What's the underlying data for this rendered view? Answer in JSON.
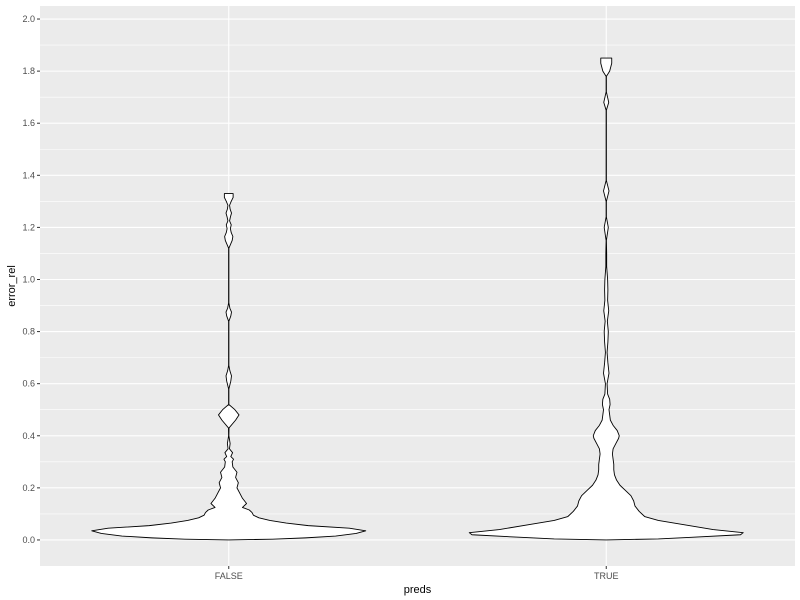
{
  "chart_data": {
    "type": "violin",
    "title": "",
    "xlabel": "preds",
    "ylabel": "error_rel",
    "ylim": [
      -0.1,
      2.05
    ],
    "yticks": [
      0.0,
      0.2,
      0.4,
      0.6,
      0.8,
      1.0,
      1.2,
      1.4,
      1.6,
      1.8,
      2.0
    ],
    "ytick_labels": [
      "0.0",
      "0.2",
      "0.4",
      "0.6",
      "0.8",
      "1.0",
      "1.2",
      "1.4",
      "1.6",
      "1.8",
      "2.0"
    ],
    "categories": [
      "FALSE",
      "TRUE"
    ],
    "grid": true,
    "colors": {
      "panel": "#ebebeb",
      "grid_major": "#ffffff",
      "violin_fill": "#ffffff",
      "violin_stroke": "#000000"
    },
    "series": [
      {
        "name": "FALSE",
        "y_min": 0.0,
        "y_max": 1.33,
        "density_profile": [
          [
            0.0,
            0.0
          ],
          [
            0.003,
            0.32
          ],
          [
            0.008,
            0.56
          ],
          [
            0.015,
            0.78
          ],
          [
            0.025,
            0.93
          ],
          [
            0.035,
            1.0
          ],
          [
            0.045,
            0.88
          ],
          [
            0.055,
            0.58
          ],
          [
            0.065,
            0.42
          ],
          [
            0.075,
            0.3
          ],
          [
            0.085,
            0.22
          ],
          [
            0.095,
            0.18
          ],
          [
            0.105,
            0.17
          ],
          [
            0.115,
            0.15
          ],
          [
            0.125,
            0.1
          ],
          [
            0.14,
            0.13
          ],
          [
            0.16,
            0.1
          ],
          [
            0.18,
            0.08
          ],
          [
            0.2,
            0.06
          ],
          [
            0.22,
            0.07
          ],
          [
            0.24,
            0.05
          ],
          [
            0.26,
            0.06
          ],
          [
            0.28,
            0.03
          ],
          [
            0.3,
            0.025
          ],
          [
            0.31,
            0.035
          ],
          [
            0.32,
            0.015
          ],
          [
            0.335,
            0.028
          ],
          [
            0.35,
            0.005
          ],
          [
            0.37,
            0.01
          ],
          [
            0.4,
            0.001
          ],
          [
            0.43,
            0.002
          ],
          [
            0.46,
            0.05
          ],
          [
            0.48,
            0.075
          ],
          [
            0.5,
            0.045
          ],
          [
            0.52,
            0.001
          ],
          [
            0.58,
            0.001
          ],
          [
            0.61,
            0.015
          ],
          [
            0.63,
            0.02
          ],
          [
            0.65,
            0.008
          ],
          [
            0.67,
            0.001
          ],
          [
            0.84,
            0.001
          ],
          [
            0.86,
            0.015
          ],
          [
            0.875,
            0.02
          ],
          [
            0.89,
            0.008
          ],
          [
            0.91,
            0.001
          ],
          [
            1.12,
            0.001
          ],
          [
            1.15,
            0.025
          ],
          [
            1.165,
            0.03
          ],
          [
            1.18,
            0.018
          ],
          [
            1.195,
            0.012
          ],
          [
            1.21,
            0.018
          ],
          [
            1.225,
            0.006
          ],
          [
            1.24,
            0.012
          ],
          [
            1.255,
            0.02
          ],
          [
            1.27,
            0.01
          ],
          [
            1.285,
            0.006
          ],
          [
            1.3,
            0.018
          ],
          [
            1.315,
            0.032
          ],
          [
            1.33,
            0.032
          ]
        ]
      },
      {
        "name": "TRUE",
        "y_min": 0.0,
        "y_max": 1.85,
        "density_profile": [
          [
            0.0,
            0.0
          ],
          [
            0.004,
            0.38
          ],
          [
            0.01,
            0.62
          ],
          [
            0.02,
            0.98
          ],
          [
            0.028,
            1.0
          ],
          [
            0.04,
            0.78
          ],
          [
            0.06,
            0.55
          ],
          [
            0.075,
            0.38
          ],
          [
            0.09,
            0.28
          ],
          [
            0.11,
            0.24
          ],
          [
            0.13,
            0.21
          ],
          [
            0.15,
            0.2
          ],
          [
            0.17,
            0.18
          ],
          [
            0.19,
            0.14
          ],
          [
            0.21,
            0.1
          ],
          [
            0.23,
            0.075
          ],
          [
            0.25,
            0.06
          ],
          [
            0.27,
            0.055
          ],
          [
            0.29,
            0.055
          ],
          [
            0.31,
            0.05
          ],
          [
            0.33,
            0.045
          ],
          [
            0.35,
            0.05
          ],
          [
            0.37,
            0.07
          ],
          [
            0.39,
            0.09
          ],
          [
            0.4,
            0.095
          ],
          [
            0.42,
            0.08
          ],
          [
            0.44,
            0.05
          ],
          [
            0.46,
            0.03
          ],
          [
            0.48,
            0.025
          ],
          [
            0.5,
            0.02
          ],
          [
            0.52,
            0.028
          ],
          [
            0.54,
            0.025
          ],
          [
            0.56,
            0.01
          ],
          [
            0.6,
            0.006
          ],
          [
            0.64,
            0.02
          ],
          [
            0.68,
            0.012
          ],
          [
            0.72,
            0.006
          ],
          [
            0.76,
            0.012
          ],
          [
            0.8,
            0.015
          ],
          [
            0.84,
            0.008
          ],
          [
            0.88,
            0.018
          ],
          [
            0.92,
            0.01
          ],
          [
            0.96,
            0.012
          ],
          [
            1.0,
            0.01
          ],
          [
            1.05,
            0.003
          ],
          [
            1.1,
            0.003
          ],
          [
            1.15,
            0.001
          ],
          [
            1.2,
            0.015
          ],
          [
            1.24,
            0.001
          ],
          [
            1.3,
            0.001
          ],
          [
            1.34,
            0.02
          ],
          [
            1.38,
            0.001
          ],
          [
            1.45,
            0.001
          ],
          [
            1.55,
            0.001
          ],
          [
            1.65,
            0.001
          ],
          [
            1.68,
            0.018
          ],
          [
            1.72,
            0.001
          ],
          [
            1.78,
            0.001
          ],
          [
            1.8,
            0.025
          ],
          [
            1.83,
            0.04
          ],
          [
            1.85,
            0.04
          ]
        ]
      }
    ]
  }
}
